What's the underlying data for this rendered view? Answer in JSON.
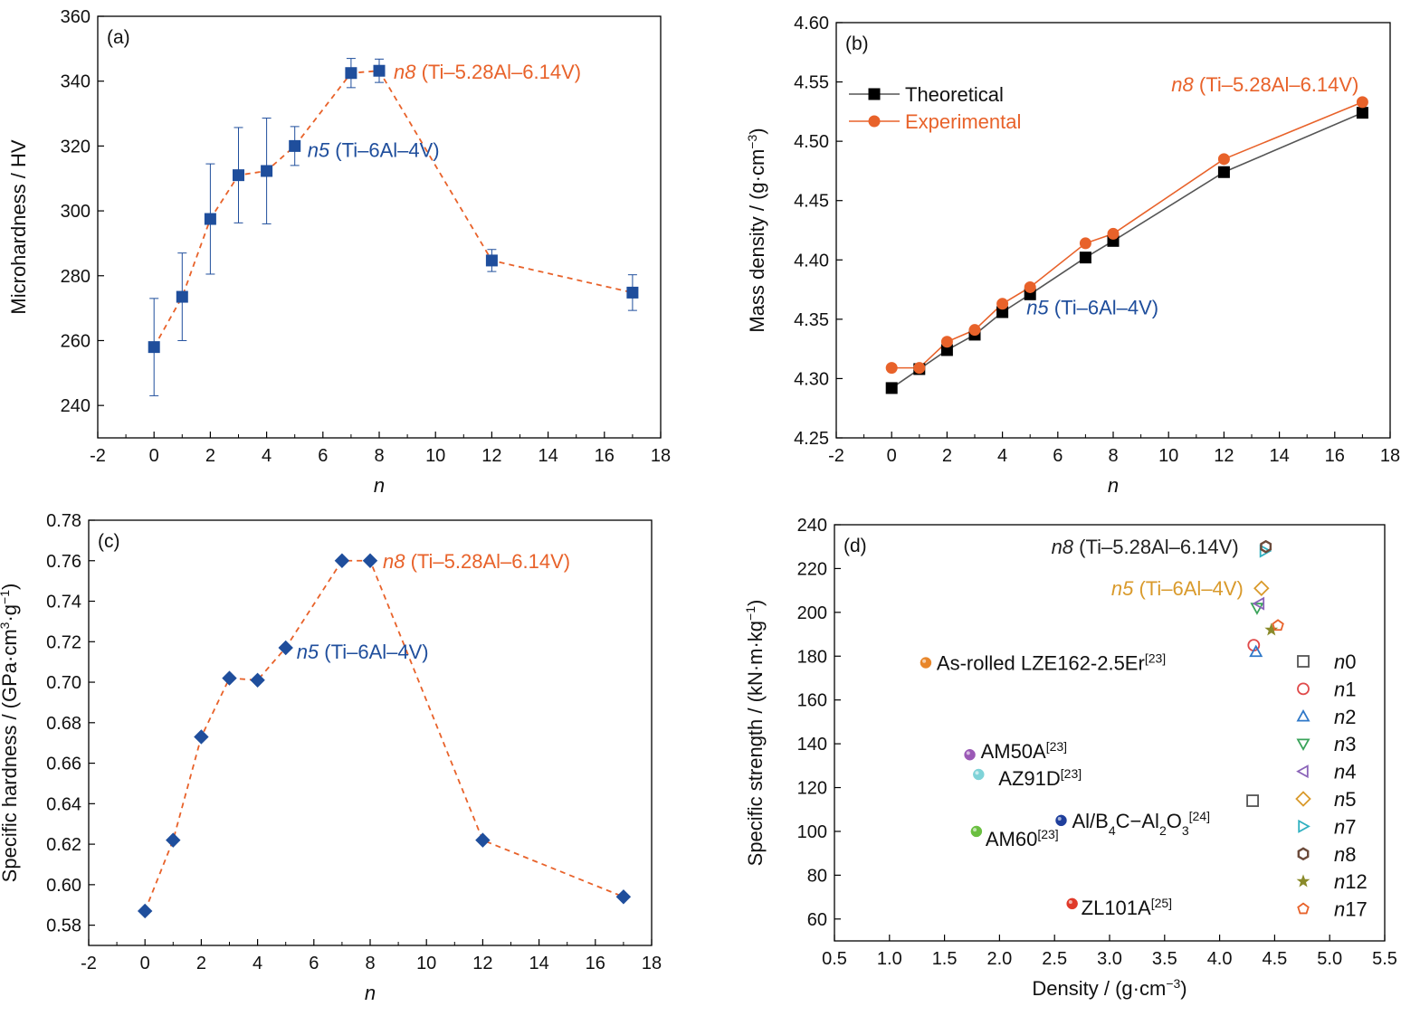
{
  "chart_data": [
    {
      "id": "a",
      "type": "scatter",
      "panel_label": "(a)",
      "xlabel": "n",
      "ylabel": "Microhardness / HV",
      "xlim": [
        -2,
        18
      ],
      "ylim": [
        230,
        360
      ],
      "xticks": [
        -2,
        0,
        2,
        4,
        6,
        8,
        10,
        12,
        14,
        16,
        18
      ],
      "yticks": [
        240,
        260,
        280,
        300,
        320,
        340,
        360
      ],
      "grid": false,
      "series": [
        {
          "marker": "square",
          "color": "#1f4e9c",
          "line_color": "#e8622a",
          "line_style": "dashed",
          "x": [
            0,
            1,
            2,
            3,
            4,
            5,
            7,
            8,
            12,
            17
          ],
          "y": [
            258,
            273.5,
            297.5,
            311,
            312.3,
            320,
            342.5,
            343.2,
            284.7,
            274.8
          ],
          "err": [
            15,
            13.5,
            17,
            14.7,
            16.3,
            6,
            4.5,
            3.6,
            3.4,
            5.5
          ]
        }
      ],
      "annotations": [
        {
          "italic": "n8",
          "text": " (Ti–5.28Al–6.14V)",
          "color": "#e8622a",
          "x": 8,
          "y": 343
        },
        {
          "italic": "n5",
          "text": " (Ti–6Al–4V)",
          "color": "#1f4e9c",
          "x": 5,
          "y": 320
        }
      ]
    },
    {
      "id": "b",
      "type": "line",
      "panel_label": "(b)",
      "xlabel": "n",
      "ylabel": "Mass density / (g·cm",
      "ylabel_sup": "−3",
      "ylabel_end": ")",
      "xlim": [
        -2,
        18
      ],
      "ylim": [
        4.25,
        4.6
      ],
      "xticks": [
        -2,
        0,
        2,
        4,
        6,
        8,
        10,
        12,
        14,
        16,
        18
      ],
      "yticks": [
        4.25,
        4.3,
        4.35,
        4.4,
        4.45,
        4.5,
        4.55,
        4.6
      ],
      "grid": false,
      "legend_position": "top-left",
      "x": [
        0,
        1,
        2,
        3,
        4,
        5,
        7,
        8,
        12,
        17
      ],
      "series": [
        {
          "name": "Theoretical",
          "marker": "square",
          "color": "#000000",
          "line_color": "#555555",
          "values": [
            4.292,
            4.308,
            4.324,
            4.337,
            4.356,
            4.371,
            4.402,
            4.416,
            4.474,
            4.524
          ]
        },
        {
          "name": "Experimental",
          "marker": "circle",
          "color": "#e8622a",
          "line_color": "#e8622a",
          "values": [
            4.309,
            4.309,
            4.331,
            4.341,
            4.363,
            4.377,
            4.414,
            4.422,
            4.485,
            4.533
          ]
        }
      ],
      "annotations": [
        {
          "italic": "n8",
          "text": " (Ti–5.28Al–6.14V)",
          "color": "#e8622a",
          "x": 17,
          "y": 4.533
        },
        {
          "italic": "n5",
          "text": " (Ti–6Al–4V)",
          "color": "#1f4e9c",
          "x": 5,
          "y": 4.371
        }
      ]
    },
    {
      "id": "c",
      "type": "scatter",
      "panel_label": "(c)",
      "xlabel": "n",
      "ylabel": "Specific hardness / (GPa·cm",
      "ylabel_sup": "3",
      "ylabel_mid": "·g",
      "ylabel_sup2": "−1",
      "ylabel_end": ")",
      "xlim": [
        -2,
        18
      ],
      "ylim": [
        0.57,
        0.78
      ],
      "xticks": [
        -2,
        0,
        2,
        4,
        6,
        8,
        10,
        12,
        14,
        16,
        18
      ],
      "yticks": [
        0.58,
        0.6,
        0.62,
        0.64,
        0.66,
        0.68,
        0.7,
        0.72,
        0.74,
        0.76,
        0.78
      ],
      "grid": false,
      "series": [
        {
          "marker": "diamond",
          "color": "#1f4e9c",
          "line_color": "#e8622a",
          "line_style": "dashed",
          "x": [
            0,
            1,
            2,
            3,
            4,
            5,
            7,
            8,
            12,
            17
          ],
          "y": [
            0.587,
            0.622,
            0.673,
            0.702,
            0.701,
            0.717,
            0.76,
            0.76,
            0.622,
            0.594
          ]
        }
      ],
      "annotations": [
        {
          "italic": "n8",
          "text": " (Ti–5.28Al–6.14V)",
          "color": "#e8622a",
          "x": 8,
          "y": 0.76
        },
        {
          "italic": "n5",
          "text": " (Ti–6Al–4V)",
          "color": "#1f4e9c",
          "x": 5,
          "y": 0.717
        }
      ]
    },
    {
      "id": "d",
      "type": "scatter",
      "panel_label": "(d)",
      "xlabel": "Density / (g·cm",
      "xlabel_sup": "−3",
      "xlabel_end": ")",
      "ylabel": "Specific strength / (kN·m·kg",
      "ylabel_sup": "−1",
      "ylabel_end": ")",
      "xlim": [
        0.5,
        5.5
      ],
      "ylim": [
        50,
        240
      ],
      "xticks": [
        0.5,
        1.0,
        1.5,
        2.0,
        2.5,
        3.0,
        3.5,
        4.0,
        4.5,
        5.0,
        5.5
      ],
      "yticks": [
        60,
        80,
        100,
        120,
        140,
        160,
        180,
        200,
        220,
        240
      ],
      "grid": false,
      "legend_position": "right",
      "series": [
        {
          "name": "n0",
          "marker": "square-open",
          "color": "#555555",
          "x": 4.3,
          "y": 114
        },
        {
          "name": "n1",
          "marker": "circle-open",
          "color": "#e04a4a",
          "x": 4.31,
          "y": 185
        },
        {
          "name": "n2",
          "marker": "triangle-up-open",
          "color": "#2f78c8",
          "x": 4.33,
          "y": 182
        },
        {
          "name": "n3",
          "marker": "triangle-down-open",
          "color": "#3aa35a",
          "x": 4.34,
          "y": 202
        },
        {
          "name": "n4",
          "marker": "triangle-left-open",
          "color": "#8a63b8",
          "x": 4.36,
          "y": 204
        },
        {
          "name": "n5",
          "marker": "diamond-open",
          "color": "#d99a2b",
          "x": 4.38,
          "y": 211
        },
        {
          "name": "n7",
          "marker": "triangle-right-open",
          "color": "#2fb0c0",
          "x": 4.41,
          "y": 228
        },
        {
          "name": "n8",
          "marker": "hexagon-open",
          "color": "#6b4a3a",
          "x": 4.42,
          "y": 230
        },
        {
          "name": "n12",
          "marker": "star",
          "color": "#8a8a2a",
          "x": 4.47,
          "y": 192
        },
        {
          "name": "n17",
          "marker": "pentagon-open",
          "color": "#e8622a",
          "x": 4.53,
          "y": 194
        }
      ],
      "reference_points": [
        {
          "text": "As-rolled LZE162-2.5Er",
          "sup": "[23]",
          "x": 1.33,
          "y": 177,
          "color": "#e8862a"
        },
        {
          "text": "AM50A",
          "sup": "[23]",
          "x": 1.73,
          "y": 135,
          "color": "#9b59b6"
        },
        {
          "text": "AZ91D",
          "sup": "[23]",
          "x": 1.81,
          "y": 126,
          "color": "#7fd3d8"
        },
        {
          "text": "AM60",
          "sup": "[23]",
          "x": 1.79,
          "y": 100,
          "color": "#6abf40"
        },
        {
          "text": "Al/B",
          "sub1": "4",
          "mid": "C−Al",
          "sub2": "2",
          "mid2": "O",
          "sub3": "3",
          "sup": "[24]",
          "x": 2.56,
          "y": 105,
          "color": "#1f3f9c"
        },
        {
          "text": "ZL101A",
          "sup": "[25]",
          "x": 2.66,
          "y": 67,
          "color": "#e03a2a"
        }
      ],
      "annotations": [
        {
          "italic": "n8",
          "text": " (Ti–5.28Al–6.14V)",
          "color": "#222222",
          "x": 4.42,
          "y": 230
        },
        {
          "italic": "n5",
          "text": " (Ti–6Al–4V)",
          "color": "#d99a2b",
          "x": 4.38,
          "y": 211
        }
      ]
    }
  ]
}
